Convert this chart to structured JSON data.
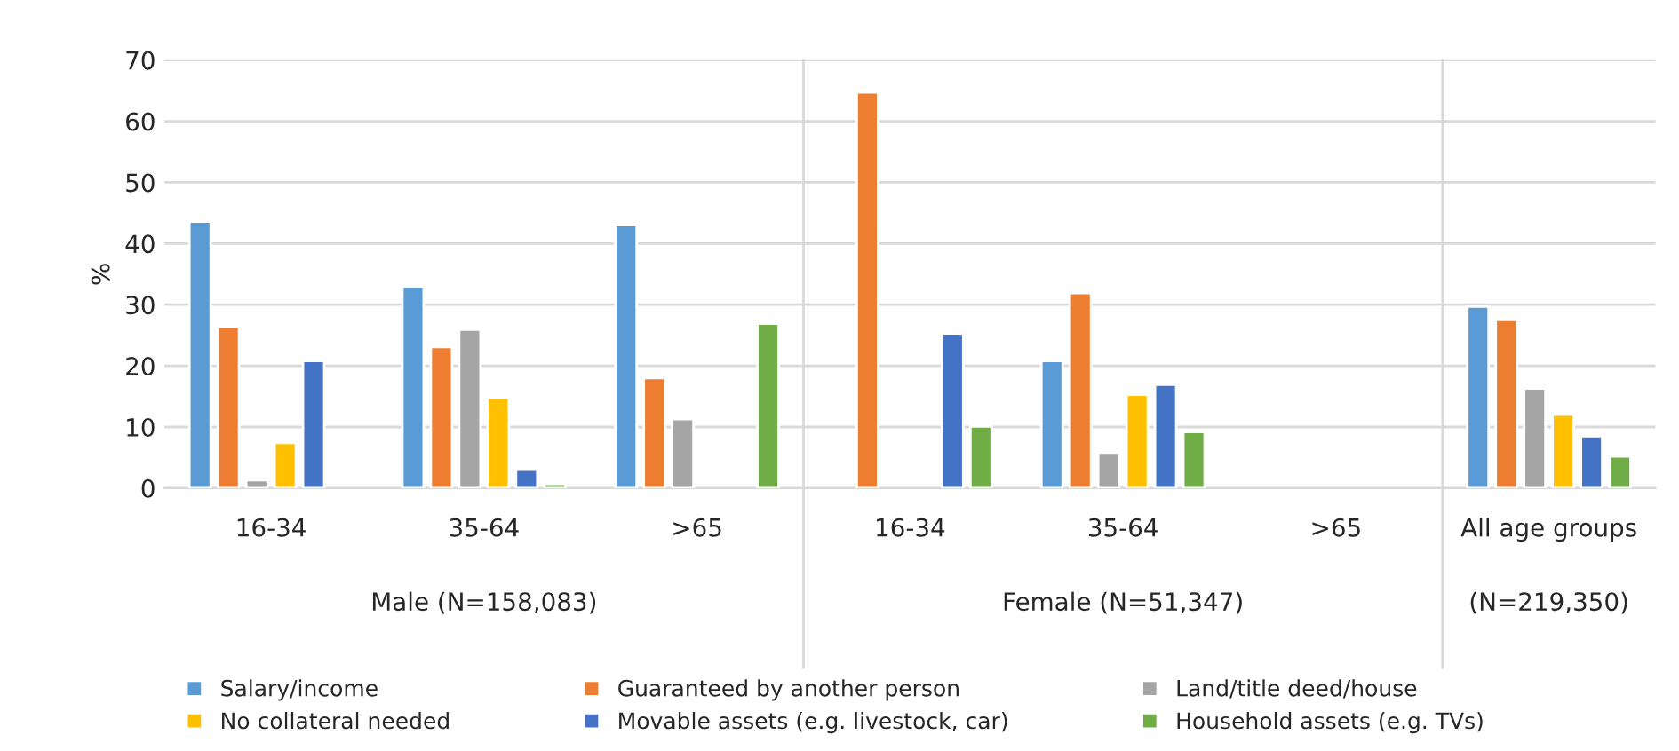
{
  "chart_data": {
    "type": "bar",
    "ylabel": "%",
    "categories": [
      "16-34",
      "35-64",
      ">65",
      "16-34",
      "35-64",
      ">65",
      "All age groups"
    ],
    "series": [
      {
        "name": "Salary/income",
        "color": "#5b9bd5",
        "values": [
          43.6,
          33,
          43,
          null,
          20.8,
          null,
          29.7
        ]
      },
      {
        "name": "Guaranteed by another person",
        "color": "#ed7d31",
        "values": [
          26.4,
          23.1,
          18,
          64.7,
          31.9,
          null,
          27.5
        ]
      },
      {
        "name": "Land/title deed/house",
        "color": "#a5a5a5",
        "values": [
          1.3,
          25.9,
          11.3,
          null,
          5.8,
          null,
          16.3
        ]
      },
      {
        "name": "No collateral needed",
        "color": "#ffc000",
        "values": [
          7.4,
          14.8,
          null,
          null,
          15.3,
          null,
          12
        ]
      },
      {
        "name": "Movable assets (e.g. livestock, car)",
        "color": "#4472c4",
        "values": [
          20.8,
          3,
          null,
          25.3,
          16.9,
          null,
          8.5
        ]
      },
      {
        "name": "Household assets (e.g. TVs)",
        "color": "#70ad47",
        "values": [
          null,
          0.7,
          26.9,
          10.1,
          9.2,
          null,
          5.2
        ]
      }
    ],
    "ylim": [
      0,
      70
    ],
    "yticks": [
      0,
      10,
      20,
      30,
      40,
      50,
      60,
      70
    ],
    "grid": "y",
    "legend": "bottom",
    "annotations": [
      "Male (N=158,083)",
      "Female (N=51,347)",
      "(N=219,350)"
    ]
  }
}
